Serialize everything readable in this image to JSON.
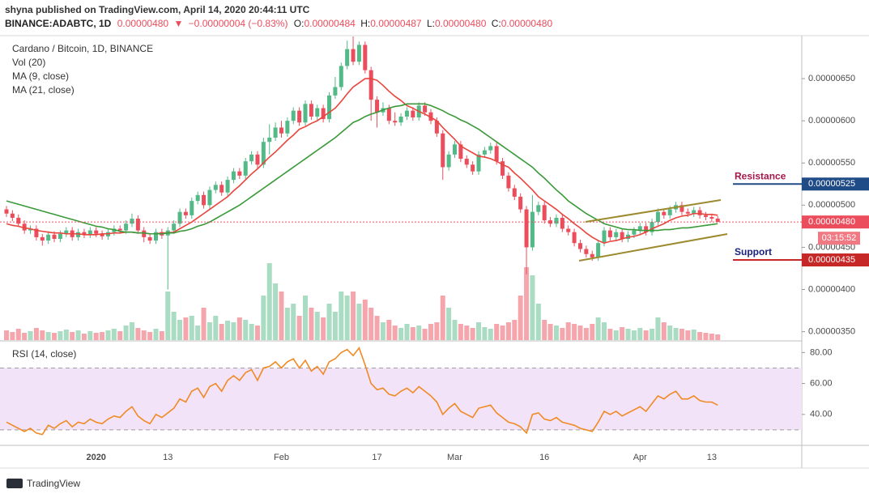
{
  "header": {
    "publisher": "shyna published on TradingView.com, April 14, 2020 20:44:11 UTC",
    "symbol": "BINANCE:ADABTC, 1D",
    "last": "0.00000480",
    "arrow": "▼",
    "change": "−0.00000004 (−0.83%)",
    "ohlc": [
      "O:",
      "0.00000484",
      "H:",
      "0.00000487",
      "L:",
      "0.00000480",
      "C:",
      "0.00000480"
    ]
  },
  "footer": {
    "brand": "TradingView"
  },
  "chart_data": {
    "type": "candlestick",
    "title": "Cardano / Bitcoin, 1D, BINANCE",
    "categories": [
      null,
      null,
      null,
      null,
      null,
      null,
      null,
      null,
      null,
      null,
      null,
      null,
      null,
      null,
      null,
      "2020",
      null,
      null,
      null,
      null,
      null,
      null,
      null,
      null,
      null,
      null,
      null,
      "13",
      null,
      null,
      null,
      null,
      null,
      null,
      null,
      null,
      null,
      null,
      null,
      null,
      null,
      null,
      null,
      null,
      null,
      null,
      "Feb",
      null,
      null,
      null,
      null,
      null,
      null,
      null,
      null,
      null,
      null,
      null,
      null,
      null,
      null,
      null,
      "17",
      null,
      null,
      null,
      null,
      null,
      null,
      null,
      null,
      null,
      null,
      null,
      null,
      "Mar",
      null,
      null,
      null,
      null,
      null,
      null,
      null,
      null,
      null,
      null,
      null,
      null,
      null,
      null,
      "16",
      null,
      null,
      null,
      null,
      null,
      null,
      null,
      null,
      null,
      null,
      null,
      null,
      null,
      null,
      null,
      "Apr",
      null,
      null,
      null,
      null,
      null,
      null,
      null,
      null,
      null,
      null,
      null,
      "13",
      null
    ],
    "open": [
      4.95e-06,
      4.9e-06,
      4.85e-06,
      4.78e-06,
      4.7e-06,
      4.72e-06,
      4.62e-06,
      4.58e-06,
      4.65e-06,
      4.6e-06,
      4.66e-06,
      4.7e-06,
      4.62e-06,
      4.68e-06,
      4.65e-06,
      4.7e-06,
      4.66e-06,
      4.63e-06,
      4.68e-06,
      4.72e-06,
      4.7e-06,
      4.78e-06,
      4.84e-06,
      4.7e-06,
      4.62e-06,
      4.58e-06,
      4.68e-06,
      4.64e-06,
      4.7e-06,
      4.78e-06,
      4.92e-06,
      4.88e-06,
      5.05e-06,
      5.12e-06,
      5e-06,
      5.18e-06,
      5.24e-06,
      5.15e-06,
      5.3e-06,
      5.4e-06,
      5.35e-06,
      5.52e-06,
      5.6e-06,
      5.48e-06,
      5.75e-06,
      5.8e-06,
      5.92e-06,
      5.85e-06,
      6e-06,
      6.12e-06,
      5.98e-06,
      6.2e-06,
      6.05e-06,
      6.15e-06,
      6.02e-06,
      6.3e-06,
      6.4e-06,
      6.65e-06,
      6.85e-06,
      6.7e-06,
      6.9e-06,
      6.6e-06,
      6.25e-06,
      6.1e-06,
      6.15e-06,
      6e-06,
      5.98e-06,
      6.05e-06,
      6.12e-06,
      6.04e-06,
      6.18e-06,
      6.1e-06,
      6e-06,
      5.85e-06,
      5.45e-06,
      5.6e-06,
      5.72e-06,
      5.55e-06,
      5.48e-06,
      5.4e-06,
      5.6e-06,
      5.65e-06,
      5.7e-06,
      5.52e-06,
      5.35e-06,
      5.2e-06,
      5.1e-06,
      4.95e-06,
      4.5e-06,
      4.92e-06,
      5e-06,
      4.82e-06,
      4.78e-06,
      4.85e-06,
      4.72e-06,
      4.68e-06,
      4.55e-06,
      4.48e-06,
      4.42e-06,
      4.38e-06,
      4.55e-06,
      4.7e-06,
      4.62e-06,
      4.68e-06,
      4.6e-06,
      4.65e-06,
      4.7e-06,
      4.75e-06,
      4.68e-06,
      4.8e-06,
      4.92e-06,
      4.88e-06,
      4.95e-06,
      5e-06,
      4.92e-06,
      4.9e-06,
      4.94e-06,
      4.88e-06,
      4.86e-06,
      4.84e-06
    ],
    "high": [
      4.99e-06,
      4.94e-06,
      4.89e-06,
      4.82e-06,
      4.76e-06,
      4.76e-06,
      4.66e-06,
      4.69e-06,
      4.69e-06,
      4.7e-06,
      4.74e-06,
      4.74e-06,
      4.72e-06,
      4.72e-06,
      4.74e-06,
      4.74e-06,
      4.7e-06,
      4.72e-06,
      4.76e-06,
      4.76e-06,
      4.82e-06,
      4.9e-06,
      4.88e-06,
      4.74e-06,
      4.66e-06,
      4.72e-06,
      4.72e-06,
      4.74e-06,
      4.82e-06,
      4.96e-06,
      4.96e-06,
      5.09e-06,
      5.16e-06,
      5.16e-06,
      5.22e-06,
      5.28e-06,
      5.28e-06,
      5.34e-06,
      5.44e-06,
      5.44e-06,
      5.56e-06,
      5.64e-06,
      5.64e-06,
      5.8e-06,
      5.96e-06,
      5.98e-06,
      6e-06,
      6.04e-06,
      6.16e-06,
      6.16e-06,
      6.24e-06,
      6.24e-06,
      6.19e-06,
      6.19e-06,
      6.34e-06,
      6.52e-06,
      6.69e-06,
      6.95e-06,
      7e-06,
      6.94e-06,
      6.94e-06,
      6.64e-06,
      6.29e-06,
      6.22e-06,
      6.19e-06,
      6.1e-06,
      6.09e-06,
      6.16e-06,
      6.16e-06,
      6.22e-06,
      6.22e-06,
      6.14e-06,
      6.04e-06,
      5.89e-06,
      5.64e-06,
      5.76e-06,
      5.76e-06,
      5.59e-06,
      5.52e-06,
      5.64e-06,
      5.69e-06,
      5.74e-06,
      5.74e-06,
      5.56e-06,
      5.39e-06,
      5.24e-06,
      5.14e-06,
      4.99e-06,
      5.12e-06,
      5.04e-06,
      5.04e-06,
      4.86e-06,
      4.89e-06,
      4.89e-06,
      4.76e-06,
      4.72e-06,
      4.59e-06,
      4.52e-06,
      4.46e-06,
      4.59e-06,
      4.74e-06,
      4.74e-06,
      4.72e-06,
      4.72e-06,
      4.69e-06,
      4.74e-06,
      4.79e-06,
      4.79e-06,
      4.84e-06,
      4.96e-06,
      4.96e-06,
      4.99e-06,
      5.04e-06,
      5.04e-06,
      4.96e-06,
      4.98e-06,
      4.98e-06,
      4.92e-06,
      4.9e-06,
      4.87e-06
    ],
    "low": [
      4.86e-06,
      4.81e-06,
      4.74e-06,
      4.66e-06,
      4.66e-06,
      4.58e-06,
      4.52e-06,
      4.54e-06,
      4.56e-06,
      4.56e-06,
      4.62e-06,
      4.58e-06,
      4.58e-06,
      4.61e-06,
      4.61e-06,
      4.62e-06,
      4.59e-06,
      4.59e-06,
      4.64e-06,
      4.66e-06,
      4.66e-06,
      4.74e-06,
      4.66e-06,
      4.56e-06,
      4.54e-06,
      4.54e-06,
      4.6e-06,
      4e-06,
      4.66e-06,
      4.74e-06,
      4.84e-06,
      4.84e-06,
      5.01e-06,
      4.96e-06,
      4.96e-06,
      5.14e-06,
      5.11e-06,
      5.11e-06,
      5.26e-06,
      5.31e-06,
      5.31e-06,
      5.48e-06,
      5.44e-06,
      5.44e-06,
      5.6e-06,
      5.76e-06,
      5.8e-06,
      5.81e-06,
      5.96e-06,
      5.94e-06,
      5.94e-06,
      6.01e-06,
      6.01e-06,
      5.98e-06,
      5.98e-06,
      6.26e-06,
      6.36e-06,
      6.61e-06,
      6.66e-06,
      6.66e-06,
      6.56e-06,
      6e-06,
      5.92e-06,
      6.06e-06,
      5.96e-06,
      5.94e-06,
      5.94e-06,
      6.01e-06,
      6e-06,
      6e-06,
      6.06e-06,
      5.96e-06,
      5.81e-06,
      5.3e-06,
      5.41e-06,
      5.56e-06,
      5.51e-06,
      5.44e-06,
      5.36e-06,
      5.36e-06,
      5.56e-06,
      5.61e-06,
      5.48e-06,
      5.31e-06,
      5.16e-06,
      5.06e-06,
      4.91e-06,
      4.18e-06,
      4.46e-06,
      4.88e-06,
      4.78e-06,
      4.74e-06,
      4.74e-06,
      4.68e-06,
      4.64e-06,
      4.51e-06,
      4.44e-06,
      4.38e-06,
      4.34e-06,
      4.34e-06,
      4.51e-06,
      4.58e-06,
      4.58e-06,
      4.56e-06,
      4.56e-06,
      4.61e-06,
      4.66e-06,
      4.64e-06,
      4.64e-06,
      4.76e-06,
      4.84e-06,
      4.84e-06,
      4.91e-06,
      4.88e-06,
      4.86e-06,
      4.86e-06,
      4.84e-06,
      4.82e-06,
      4.8e-06,
      4.8e-06
    ],
    "close": [
      4.9e-06,
      4.85e-06,
      4.78e-06,
      4.7e-06,
      4.72e-06,
      4.62e-06,
      4.58e-06,
      4.65e-06,
      4.6e-06,
      4.66e-06,
      4.7e-06,
      4.62e-06,
      4.68e-06,
      4.65e-06,
      4.7e-06,
      4.66e-06,
      4.63e-06,
      4.68e-06,
      4.72e-06,
      4.7e-06,
      4.78e-06,
      4.84e-06,
      4.7e-06,
      4.62e-06,
      4.58e-06,
      4.68e-06,
      4.64e-06,
      4.7e-06,
      4.78e-06,
      4.92e-06,
      4.88e-06,
      5.05e-06,
      5.12e-06,
      5e-06,
      5.18e-06,
      5.24e-06,
      5.15e-06,
      5.3e-06,
      5.4e-06,
      5.35e-06,
      5.52e-06,
      5.6e-06,
      5.48e-06,
      5.75e-06,
      5.8e-06,
      5.92e-06,
      5.85e-06,
      6e-06,
      6.12e-06,
      5.98e-06,
      6.2e-06,
      6.05e-06,
      6.15e-06,
      6.02e-06,
      6.3e-06,
      6.4e-06,
      6.65e-06,
      6.85e-06,
      6.7e-06,
      6.9e-06,
      6.6e-06,
      6.25e-06,
      6.1e-06,
      6.15e-06,
      6e-06,
      5.98e-06,
      6.05e-06,
      6.12e-06,
      6.04e-06,
      6.18e-06,
      6.1e-06,
      6e-06,
      5.85e-06,
      5.45e-06,
      5.6e-06,
      5.72e-06,
      5.55e-06,
      5.48e-06,
      5.4e-06,
      5.6e-06,
      5.65e-06,
      5.7e-06,
      5.52e-06,
      5.35e-06,
      5.2e-06,
      5.1e-06,
      4.95e-06,
      4.5e-06,
      4.92e-06,
      5e-06,
      4.82e-06,
      4.78e-06,
      4.85e-06,
      4.72e-06,
      4.68e-06,
      4.55e-06,
      4.48e-06,
      4.42e-06,
      4.38e-06,
      4.55e-06,
      4.7e-06,
      4.62e-06,
      4.68e-06,
      4.6e-06,
      4.65e-06,
      4.7e-06,
      4.75e-06,
      4.68e-06,
      4.8e-06,
      4.92e-06,
      4.88e-06,
      4.95e-06,
      5e-06,
      4.92e-06,
      4.9e-06,
      4.94e-06,
      4.88e-06,
      4.86e-06,
      4.84e-06,
      4.8e-06
    ],
    "up_color": "#53b987",
    "down_color": "#eb4d5c",
    "ylim": [
      3.4e-06,
      7e-06
    ],
    "yticks": [
      {
        "value": 3.5e-06,
        "label": "0.00000350"
      },
      {
        "value": 4e-06,
        "label": "0.00000400"
      },
      {
        "value": 4.5e-06,
        "label": "0.00000450"
      },
      {
        "value": 5e-06,
        "label": "0.00000500"
      },
      {
        "value": 5.5e-06,
        "label": "0.00000550"
      },
      {
        "value": 6e-06,
        "label": "0.00000600"
      },
      {
        "value": 6.5e-06,
        "label": "0.00000650"
      }
    ],
    "volume": {
      "name": "Vol (20)",
      "values": [
        12,
        10,
        14,
        9,
        11,
        15,
        12,
        10,
        9,
        11,
        13,
        10,
        12,
        8,
        11,
        9,
        10,
        12,
        14,
        11,
        18,
        22,
        15,
        12,
        10,
        14,
        11,
        60,
        35,
        25,
        28,
        30,
        18,
        40,
        22,
        30,
        20,
        24,
        22,
        28,
        25,
        20,
        18,
        55,
        95,
        70,
        60,
        40,
        45,
        30,
        55,
        40,
        35,
        28,
        45,
        35,
        60,
        55,
        60,
        45,
        50,
        40,
        30,
        22,
        25,
        18,
        15,
        20,
        16,
        18,
        14,
        20,
        22,
        55,
        40,
        25,
        20,
        18,
        15,
        22,
        16,
        14,
        20,
        18,
        22,
        25,
        55,
        90,
        80,
        45,
        25,
        20,
        18,
        15,
        22,
        20,
        18,
        15,
        20,
        28,
        22,
        14,
        12,
        16,
        14,
        12,
        15,
        12,
        14,
        28,
        22,
        18,
        15,
        14,
        12,
        13,
        10,
        9,
        8,
        7
      ]
    },
    "series": [
      {
        "name": "MA (9, close)",
        "color": "#e8453c",
        "values": [
          4.78e-06,
          4.76e-06,
          4.75e-06,
          4.73e-06,
          4.72e-06,
          4.7e-06,
          4.69e-06,
          4.68e-06,
          4.67e-06,
          4.67e-06,
          4.66e-06,
          4.66e-06,
          4.66e-06,
          4.65e-06,
          4.65e-06,
          4.65e-06,
          4.66e-06,
          4.66e-06,
          4.67e-06,
          4.67e-06,
          4.68e-06,
          4.68e-06,
          4.67e-06,
          4.67e-06,
          4.66e-06,
          4.66e-06,
          4.67e-06,
          4.67e-06,
          4.68e-06,
          4.72e-06,
          4.76e-06,
          4.8e-06,
          4.85e-06,
          4.9e-06,
          4.95e-06,
          5e-06,
          5.05e-06,
          5.1e-06,
          5.17e-06,
          5.23e-06,
          5.3e-06,
          5.37e-06,
          5.43e-06,
          5.5e-06,
          5.57e-06,
          5.63e-06,
          5.7e-06,
          5.77e-06,
          5.83e-06,
          5.9e-06,
          5.93e-06,
          5.97e-06,
          6e-06,
          6.05e-06,
          6.1e-06,
          6.15e-06,
          6.23e-06,
          6.32e-06,
          6.4e-06,
          6.45e-06,
          6.5e-06,
          6.5e-06,
          6.48e-06,
          6.42e-06,
          6.35e-06,
          6.29e-06,
          6.24e-06,
          6.18e-06,
          6.15e-06,
          6.11e-06,
          6.08e-06,
          6.04e-06,
          6e-06,
          5.92e-06,
          5.85e-06,
          5.78e-06,
          5.7e-06,
          5.66e-06,
          5.62e-06,
          5.58e-06,
          5.57e-06,
          5.55e-06,
          5.52e-06,
          5.48e-06,
          5.45e-06,
          5.38e-06,
          5.32e-06,
          5.25e-06,
          5.18e-06,
          5.1e-06,
          5.05e-06,
          5e-06,
          4.95e-06,
          4.89e-06,
          4.84e-06,
          4.78e-06,
          4.73e-06,
          4.67e-06,
          4.62e-06,
          4.58e-06,
          4.55e-06,
          4.57e-06,
          4.58e-06,
          4.6e-06,
          4.62e-06,
          4.63e-06,
          4.65e-06,
          4.68e-06,
          4.72e-06,
          4.75e-06,
          4.78e-06,
          4.82e-06,
          4.85e-06,
          4.87e-06,
          4.88e-06,
          4.9e-06,
          4.9e-06,
          4.89e-06,
          4.89e-06,
          4.88e-06
        ]
      },
      {
        "name": "MA (21, close)",
        "color": "#3a9a3a",
        "values": [
          5.05e-06,
          5.03e-06,
          5.01e-06,
          4.99e-06,
          4.97e-06,
          4.95e-06,
          4.93e-06,
          4.91e-06,
          4.89e-06,
          4.87e-06,
          4.85e-06,
          4.83e-06,
          4.81e-06,
          4.79e-06,
          4.77e-06,
          4.75e-06,
          4.74e-06,
          4.72e-06,
          4.71e-06,
          4.69e-06,
          4.68e-06,
          4.68e-06,
          4.67e-06,
          4.67e-06,
          4.66e-06,
          4.66e-06,
          4.66e-06,
          4.67e-06,
          4.67e-06,
          4.69e-06,
          4.7e-06,
          4.72e-06,
          4.75e-06,
          4.77e-06,
          4.8e-06,
          4.84e-06,
          4.88e-06,
          4.92e-06,
          4.96e-06,
          5e-06,
          5.05e-06,
          5.1e-06,
          5.15e-06,
          5.2e-06,
          5.25e-06,
          5.3e-06,
          5.35e-06,
          5.4e-06,
          5.45e-06,
          5.5e-06,
          5.55e-06,
          5.6e-06,
          5.65e-06,
          5.7e-06,
          5.75e-06,
          5.8e-06,
          5.86e-06,
          5.92e-06,
          5.98e-06,
          6.01e-06,
          6.05e-06,
          6.08e-06,
          6.1e-06,
          6.13e-06,
          6.15e-06,
          6.17e-06,
          6.18e-06,
          6.2e-06,
          6.2e-06,
          6.2e-06,
          6.2e-06,
          6.18e-06,
          6.15e-06,
          6.12e-06,
          6.08e-06,
          6.05e-06,
          6.01e-06,
          5.98e-06,
          5.94e-06,
          5.9e-06,
          5.85e-06,
          5.8e-06,
          5.75e-06,
          5.7e-06,
          5.65e-06,
          5.6e-06,
          5.55e-06,
          5.5e-06,
          5.45e-06,
          5.38e-06,
          5.32e-06,
          5.25e-06,
          5.18e-06,
          5.12e-06,
          5.05e-06,
          5e-06,
          4.95e-06,
          4.9e-06,
          4.86e-06,
          4.82e-06,
          4.78e-06,
          4.76e-06,
          4.74e-06,
          4.72e-06,
          4.71e-06,
          4.71e-06,
          4.7e-06,
          4.7e-06,
          4.7e-06,
          4.7e-06,
          4.71e-06,
          4.71e-06,
          4.72e-06,
          4.73e-06,
          4.73e-06,
          4.74e-06,
          4.75e-06,
          4.76e-06,
          4.77e-06,
          4.78e-06
        ]
      }
    ],
    "last_price": {
      "value": 4.8e-06,
      "label": "0.00000480",
      "countdown": "03:15:52"
    },
    "levels": [
      {
        "name": "Resistance",
        "value": 5.25e-06,
        "label": "0.00000525",
        "color": "#1f4b86",
        "text_color": "#a3174b"
      },
      {
        "name": "Support",
        "value": 4.35e-06,
        "label": "0.00000435",
        "color": "#c62828",
        "text_color": "#1a237e"
      }
    ],
    "rsi": {
      "name": "RSI (14, close)",
      "color": "#f08a24",
      "ylim": [
        20,
        87
      ],
      "bands": [
        30,
        70
      ],
      "yticks": [
        {
          "value": 40,
          "label": "40.00"
        },
        {
          "value": 60,
          "label": "60.00"
        },
        {
          "value": 80,
          "label": "80.00"
        }
      ],
      "values": [
        35,
        33,
        31,
        29,
        31,
        28,
        27,
        33,
        31,
        34,
        36,
        32,
        35,
        34,
        37,
        35,
        34,
        37,
        39,
        38,
        42,
        45,
        39,
        36,
        34,
        40,
        38,
        41,
        44,
        50,
        48,
        55,
        57,
        51,
        58,
        60,
        55,
        62,
        65,
        62,
        67,
        69,
        62,
        70,
        71,
        74,
        70,
        74,
        76,
        70,
        75,
        68,
        71,
        66,
        74,
        76,
        80,
        82,
        78,
        83,
        72,
        60,
        56,
        57,
        53,
        52,
        55,
        57,
        54,
        58,
        55,
        52,
        48,
        40,
        44,
        47,
        42,
        40,
        38,
        44,
        45,
        46,
        41,
        38,
        35,
        34,
        32,
        28,
        40,
        41,
        37,
        36,
        38,
        35,
        34,
        33,
        31,
        30,
        29,
        35,
        42,
        40,
        42,
        39,
        41,
        43,
        45,
        42,
        47,
        52,
        50,
        53,
        55,
        50,
        50,
        52,
        49,
        48,
        48,
        46
      ]
    }
  }
}
